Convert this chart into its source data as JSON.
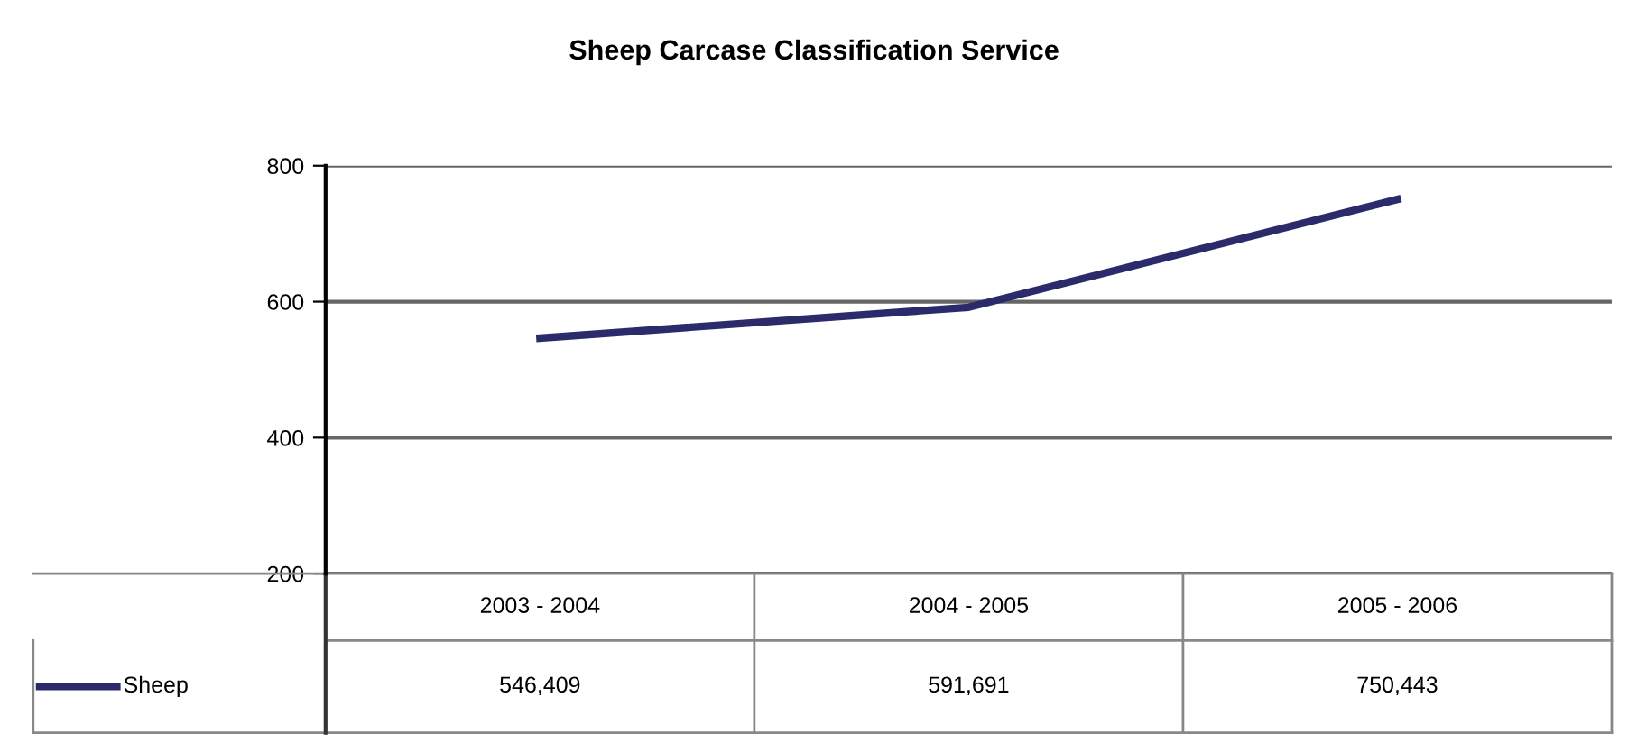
{
  "chart_data": {
    "type": "line",
    "title": "Sheep Carcase Classification Service",
    "categories": [
      "2003 - 2004",
      "2004 - 2005",
      "2005 - 2006"
    ],
    "series": [
      {
        "name": "Sheep",
        "color": "#2b2b6b",
        "values": [
          546.409,
          591.691,
          750.443
        ]
      }
    ],
    "annotations": [
      "546,409",
      "591,691",
      "750,443"
    ],
    "ylim": [
      200,
      800
    ],
    "yticks": [
      200,
      400,
      600,
      800
    ],
    "grid": "y",
    "legend": "bottom",
    "marker": "none",
    "line_style": "solid"
  }
}
